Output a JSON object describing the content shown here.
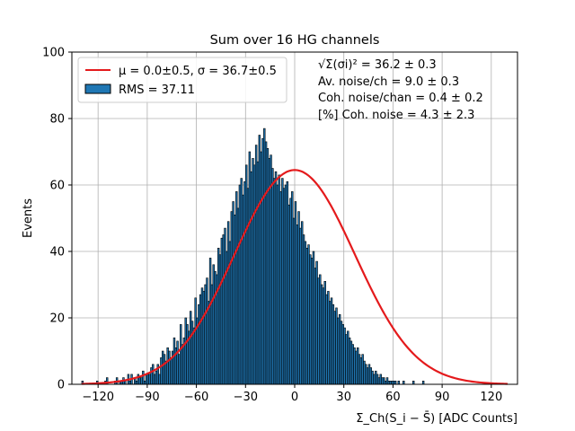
{
  "chart_data": {
    "type": "bar",
    "title": "Sum over 16 HG channels",
    "xlabel": "Σ_Ch(S_i − S̄) [ADC Counts]",
    "ylabel": "Events",
    "xlim": [
      -136,
      136
    ],
    "ylim": [
      0,
      100
    ],
    "xticks": [
      -120,
      -90,
      -60,
      -30,
      0,
      30,
      60,
      90,
      120
    ],
    "yticks": [
      0,
      20,
      40,
      60,
      80,
      100
    ],
    "grid": true,
    "legend_position": "top-left",
    "colors": {
      "hist": "#1f77b4",
      "fit": "#e41a1c",
      "edge": "#000000"
    },
    "legend": [
      {
        "kind": "line",
        "label": "μ = 0.0±0.5, σ = 36.7±0.5"
      },
      {
        "kind": "patch",
        "label": "RMS = 37.11"
      }
    ],
    "annotations": [
      "√Σ(σi)² = 36.2 ± 0.3",
      "Av. noise/ch  = 9.0 ± 0.3",
      "Coh. noise/chan  = 0.4 ± 0.2",
      "[%] Coh. noise  = 4.3 ± 2.3"
    ],
    "fit": {
      "mu": 0.0,
      "sigma": 36.7,
      "amplitude": 64.5,
      "range": [
        -130,
        130
      ]
    },
    "histogram": {
      "bin_start": -130,
      "bin_width": 1,
      "counts": [
        1,
        0,
        0,
        0,
        0,
        0,
        0,
        0,
        0,
        1,
        0,
        0,
        0,
        0,
        1,
        2,
        0,
        0,
        0,
        0,
        1,
        2,
        0,
        1,
        1,
        2,
        1,
        0,
        3,
        1,
        3,
        0,
        2,
        1,
        3,
        2,
        2,
        4,
        1,
        3,
        3,
        3,
        5,
        6,
        3,
        4,
        6,
        3,
        8,
        10,
        9,
        7,
        11,
        10,
        8,
        10,
        14,
        11,
        13,
        9,
        18,
        12,
        14,
        20,
        18,
        16,
        22,
        19,
        17,
        26,
        20,
        24,
        27,
        29,
        28,
        30,
        32,
        25,
        38,
        30,
        36,
        34,
        33,
        41,
        39,
        44,
        45,
        47,
        40,
        49,
        43,
        52,
        55,
        51,
        58,
        53,
        60,
        62,
        57,
        61,
        66,
        59,
        70,
        64,
        68,
        66,
        72,
        67,
        75,
        70,
        74,
        77,
        73,
        71,
        68,
        69,
        65,
        62,
        64,
        60,
        63,
        58,
        62,
        59,
        60,
        61,
        54,
        56,
        58,
        50,
        55,
        48,
        52,
        47,
        49,
        45,
        43,
        41,
        42,
        39,
        38,
        40,
        35,
        37,
        32,
        33,
        30,
        29,
        31,
        27,
        28,
        25,
        26,
        24,
        22,
        23,
        20,
        21,
        19,
        18,
        17,
        15,
        16,
        14,
        13,
        12,
        11,
        10,
        11,
        9,
        8,
        9,
        7,
        6,
        5,
        6,
        5,
        4,
        3,
        4,
        3,
        2,
        3,
        2,
        2,
        1,
        2,
        1,
        1,
        1,
        1,
        1,
        0,
        1,
        0,
        0,
        1,
        0,
        0,
        0,
        0,
        0,
        1,
        0,
        0,
        0,
        0,
        0,
        1,
        0,
        0,
        0,
        0,
        0,
        0,
        0,
        0,
        0,
        0,
        0,
        0,
        0,
        0,
        0,
        0,
        0,
        0,
        0,
        0,
        0,
        0,
        0,
        0,
        0,
        0,
        0,
        0,
        0,
        0,
        0,
        0,
        0,
        0,
        0,
        0,
        0,
        0,
        0,
        0,
        0,
        0,
        0,
        0,
        0,
        0,
        0,
        0,
        0,
        0,
        0,
        0,
        0,
        0
      ]
    }
  }
}
